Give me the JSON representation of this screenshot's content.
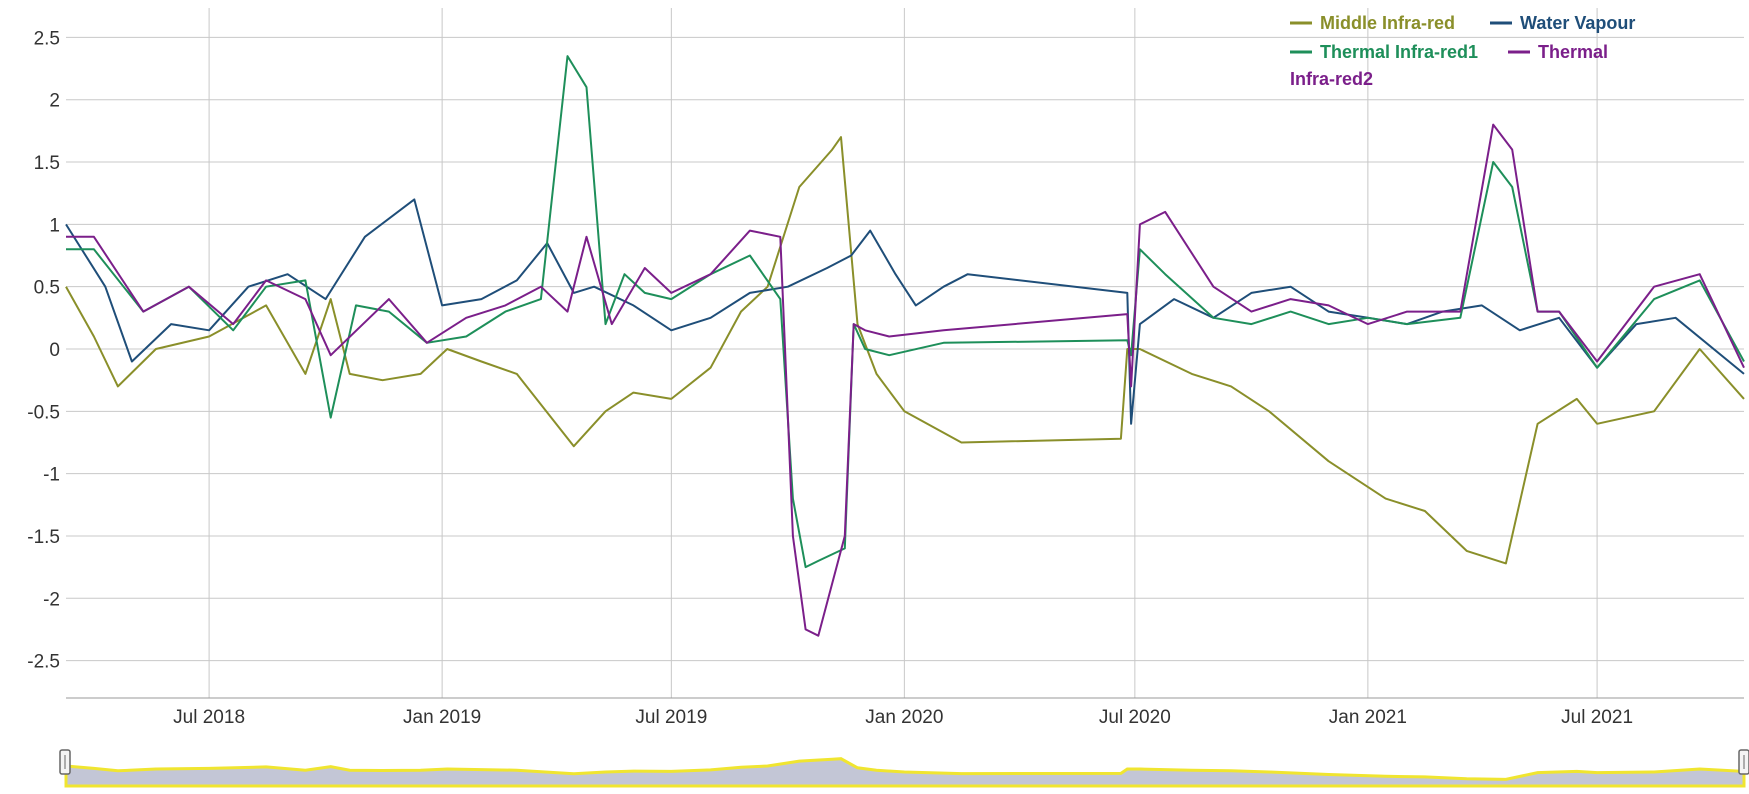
{
  "chart_data": {
    "type": "line",
    "title": "",
    "xlabel": "",
    "ylabel": "",
    "x_range": [
      "2018-03-10",
      "2021-10-25"
    ],
    "ylim": [
      -2.8,
      2.8
    ],
    "y_ticks": [
      2.5,
      2,
      1.5,
      1,
      0.5,
      0,
      -0.5,
      -1,
      -1.5,
      -2,
      -2.5
    ],
    "y_tick_labels": [
      "2.5",
      "2",
      "1.5",
      "1",
      "0.5",
      "0",
      "-0.5",
      "-1",
      "-1.5",
      "-2",
      "-2.5"
    ],
    "x_ticks": [
      "2018-07-01",
      "2019-01-01",
      "2019-07-01",
      "2020-01-01",
      "2020-07-01",
      "2021-01-01",
      "2021-07-01"
    ],
    "x_tick_labels": [
      "Jul 2018",
      "Jan 2019",
      "Jul 2019",
      "Jan 2020",
      "Jul 2020",
      "Jan 2021",
      "Jul 2021"
    ],
    "grid": true,
    "legend_position": "top-right",
    "navigator": true,
    "series": [
      {
        "name": "Middle Infra-red",
        "color": "#8a8f2a",
        "x": [
          "2018-03-10",
          "2018-04-01",
          "2018-04-20",
          "2018-05-20",
          "2018-07-01",
          "2018-08-15",
          "2018-09-15",
          "2018-10-05",
          "2018-10-20",
          "2018-11-15",
          "2018-12-15",
          "2019-01-05",
          "2019-02-01",
          "2019-03-01",
          "2019-04-15",
          "2019-05-10",
          "2019-06-01",
          "2019-07-01",
          "2019-08-01",
          "2019-08-25",
          "2019-09-15",
          "2019-10-10",
          "2019-11-05",
          "2019-11-12",
          "2019-11-25",
          "2019-12-10",
          "2020-01-01",
          "2020-02-15",
          "2020-06-20",
          "2020-06-25",
          "2020-07-05",
          "2020-08-15",
          "2020-09-15",
          "2020-10-15",
          "2020-12-01",
          "2021-01-15",
          "2021-02-15",
          "2021-03-20",
          "2021-04-20",
          "2021-05-15",
          "2021-06-15",
          "2021-07-01",
          "2021-08-15",
          "2021-09-20",
          "2021-10-25"
        ],
        "values": [
          0.5,
          0.1,
          -0.3,
          0.0,
          0.1,
          0.35,
          -0.2,
          0.4,
          -0.2,
          -0.25,
          -0.2,
          0.0,
          -0.1,
          -0.2,
          -0.78,
          -0.5,
          -0.35,
          -0.4,
          -0.15,
          0.3,
          0.5,
          1.3,
          1.6,
          1.7,
          0.2,
          -0.2,
          -0.5,
          -0.75,
          -0.72,
          0.0,
          0.0,
          -0.2,
          -0.3,
          -0.5,
          -0.9,
          -1.2,
          -1.3,
          -1.62,
          -1.72,
          -0.6,
          -0.4,
          -0.6,
          -0.5,
          0.0,
          -0.4
        ]
      },
      {
        "name": "Water Vapour",
        "color": "#1f4e79",
        "x": [
          "2018-03-10",
          "2018-04-10",
          "2018-05-01",
          "2018-06-01",
          "2018-07-01",
          "2018-08-01",
          "2018-09-01",
          "2018-10-01",
          "2018-11-01",
          "2018-12-10",
          "2019-01-01",
          "2019-02-01",
          "2019-03-01",
          "2019-03-25",
          "2019-04-15",
          "2019-05-01",
          "2019-06-01",
          "2019-07-01",
          "2019-08-01",
          "2019-09-01",
          "2019-10-01",
          "2019-11-01",
          "2019-11-20",
          "2019-12-05",
          "2019-12-25",
          "2020-01-10",
          "2020-02-01",
          "2020-02-20",
          "2020-06-25",
          "2020-06-28",
          "2020-07-05",
          "2020-08-01",
          "2020-09-01",
          "2020-10-01",
          "2020-11-01",
          "2020-12-01",
          "2021-01-01",
          "2021-02-01",
          "2021-03-01",
          "2021-04-01",
          "2021-05-01",
          "2021-06-01",
          "2021-07-01",
          "2021-08-01",
          "2021-09-01",
          "2021-10-25"
        ],
        "values": [
          1.0,
          0.5,
          -0.1,
          0.2,
          0.15,
          0.5,
          0.6,
          0.4,
          0.9,
          1.2,
          0.35,
          0.4,
          0.55,
          0.85,
          0.45,
          0.5,
          0.35,
          0.15,
          0.25,
          0.45,
          0.5,
          0.65,
          0.75,
          0.95,
          0.6,
          0.35,
          0.5,
          0.6,
          0.45,
          -0.6,
          0.2,
          0.4,
          0.25,
          0.45,
          0.5,
          0.3,
          0.25,
          0.2,
          0.3,
          0.35,
          0.15,
          0.25,
          -0.15,
          0.2,
          0.25,
          -0.2
        ]
      },
      {
        "name": "Thermal Infra-red1",
        "color": "#1e8f5a",
        "x": [
          "2018-03-10",
          "2018-04-01",
          "2018-05-10",
          "2018-06-15",
          "2018-07-20",
          "2018-08-15",
          "2018-09-15",
          "2018-10-05",
          "2018-10-25",
          "2018-11-20",
          "2018-12-20",
          "2019-01-20",
          "2019-02-20",
          "2019-03-20",
          "2019-04-10",
          "2019-04-25",
          "2019-05-10",
          "2019-05-25",
          "2019-06-10",
          "2019-07-01",
          "2019-08-01",
          "2019-09-01",
          "2019-09-25",
          "2019-10-05",
          "2019-10-15",
          "2019-10-25",
          "2019-11-15",
          "2019-11-22",
          "2019-12-01",
          "2019-12-20",
          "2020-02-01",
          "2020-06-25",
          "2020-06-28",
          "2020-07-05",
          "2020-07-25",
          "2020-09-01",
          "2020-10-01",
          "2020-11-01",
          "2020-12-01",
          "2021-01-01",
          "2021-02-01",
          "2021-03-15",
          "2021-04-10",
          "2021-04-25",
          "2021-05-15",
          "2021-06-01",
          "2021-07-01",
          "2021-08-15",
          "2021-09-20",
          "2021-10-25"
        ],
        "values": [
          0.8,
          0.8,
          0.3,
          0.5,
          0.15,
          0.5,
          0.55,
          -0.55,
          0.35,
          0.3,
          0.05,
          0.1,
          0.3,
          0.4,
          2.35,
          2.1,
          0.2,
          0.6,
          0.45,
          0.4,
          0.6,
          0.75,
          0.4,
          -1.2,
          -1.75,
          -1.7,
          -1.6,
          0.2,
          0.0,
          -0.05,
          0.05,
          0.07,
          -0.05,
          0.8,
          0.6,
          0.25,
          0.2,
          0.3,
          0.2,
          0.25,
          0.2,
          0.25,
          1.5,
          1.3,
          0.3,
          0.3,
          -0.15,
          0.4,
          0.55,
          -0.1
        ]
      },
      {
        "name": "Thermal Infra-red2",
        "color": "#7b1f8a",
        "x": [
          "2018-03-10",
          "2018-04-01",
          "2018-05-10",
          "2018-06-15",
          "2018-07-20",
          "2018-08-15",
          "2018-09-15",
          "2018-10-05",
          "2018-11-20",
          "2018-12-20",
          "2019-01-20",
          "2019-02-20",
          "2019-03-20",
          "2019-04-10",
          "2019-04-25",
          "2019-05-15",
          "2019-06-10",
          "2019-07-01",
          "2019-08-01",
          "2019-09-01",
          "2019-09-25",
          "2019-10-05",
          "2019-10-15",
          "2019-10-25",
          "2019-11-15",
          "2019-11-22",
          "2019-12-01",
          "2019-12-20",
          "2020-02-01",
          "2020-06-25",
          "2020-06-28",
          "2020-07-05",
          "2020-07-25",
          "2020-09-01",
          "2020-10-01",
          "2020-11-01",
          "2020-12-01",
          "2021-01-01",
          "2021-02-01",
          "2021-03-15",
          "2021-04-10",
          "2021-04-25",
          "2021-05-15",
          "2021-06-01",
          "2021-07-01",
          "2021-08-15",
          "2021-09-20",
          "2021-10-25"
        ],
        "values": [
          0.9,
          0.9,
          0.3,
          0.5,
          0.2,
          0.55,
          0.4,
          -0.05,
          0.4,
          0.05,
          0.25,
          0.35,
          0.5,
          0.3,
          0.9,
          0.2,
          0.65,
          0.45,
          0.6,
          0.95,
          0.9,
          -1.5,
          -2.25,
          -2.3,
          -1.5,
          0.2,
          0.15,
          0.1,
          0.15,
          0.28,
          -0.3,
          1.0,
          1.1,
          0.5,
          0.3,
          0.4,
          0.35,
          0.2,
          0.3,
          0.3,
          1.8,
          1.6,
          0.3,
          0.3,
          -0.1,
          0.5,
          0.6,
          -0.15
        ]
      }
    ]
  },
  "legend": {
    "line1a": "Middle Infra-red",
    "line1b": "Water Vapour",
    "line2a": "Thermal Infra-red1",
    "line2b": "Thermal",
    "line3": "Infra-red2"
  }
}
